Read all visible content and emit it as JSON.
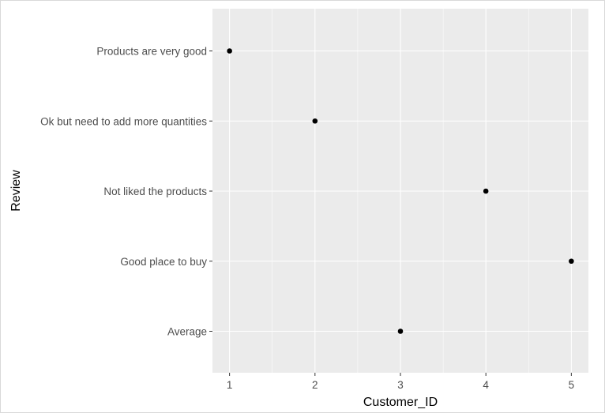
{
  "chart_data": {
    "type": "scatter",
    "xlabel": "Customer_ID",
    "ylabel": "Review",
    "x_ticks": [
      "1",
      "2",
      "3",
      "4",
      "5"
    ],
    "categories": [
      "Average",
      "Good place to buy",
      "Not liked the products",
      "Ok but need to add more quantities",
      "Products are very good"
    ],
    "points": [
      {
        "x": 1,
        "y": "Products are very good"
      },
      {
        "x": 2,
        "y": "Ok but need to add more quantities"
      },
      {
        "x": 3,
        "y": "Average"
      },
      {
        "x": 4,
        "y": "Not liked the products"
      },
      {
        "x": 5,
        "y": "Good place to buy"
      }
    ],
    "xlim": [
      0.8,
      5.2
    ],
    "grid": true,
    "panel_color": "#ebebeb",
    "grid_color": "#ffffff",
    "point_color": "#000000"
  }
}
